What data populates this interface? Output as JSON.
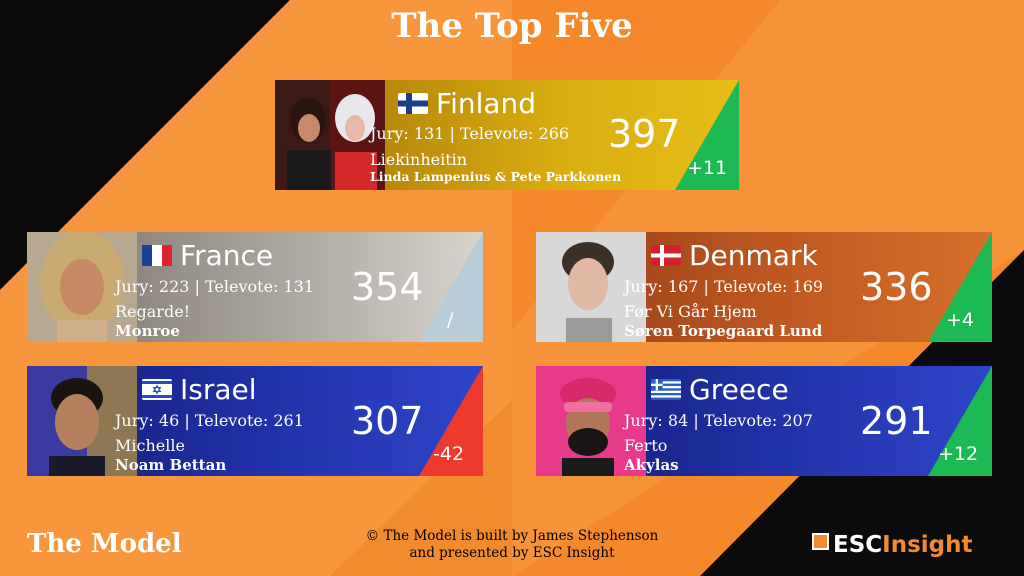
{
  "title": "The Top Five",
  "footer": {
    "left": "The Model",
    "credit_line1": "© The Model is built by James Stephenson",
    "credit_line2": "and presented by ESC Insight",
    "logo_prefix": "ESC",
    "logo_suffix": "Insight"
  },
  "entries": [
    {
      "country": "Finland",
      "jury": "Jury: 131",
      "televote": "Televote: 266",
      "score": "397",
      "song": "Liekinheitin",
      "artist": "Linda Lampenius & Pete Parkkonen",
      "change": "+11",
      "panel_color": "#d4a90a",
      "change_color": "#1db954"
    },
    {
      "country": "France",
      "jury": "Jury: 223",
      "televote": "Televote: 131",
      "score": "354",
      "song": "Regarde!",
      "artist": "Monroe",
      "change": "/",
      "panel_color": "#a8a39c",
      "change_color": "#b8cdd8"
    },
    {
      "country": "Denmark",
      "jury": "Jury: 167",
      "televote": "Televote: 169",
      "score": "336",
      "song": "Før Vi Går Hjem",
      "artist": "Søren Torpegaard Lund",
      "change": "+4",
      "panel_color": "#c25a1f",
      "change_color": "#1db954"
    },
    {
      "country": "Israel",
      "jury": "Jury: 46",
      "televote": "Televote: 261",
      "score": "307",
      "song": "Michelle",
      "artist": "Noam Bettan",
      "change": "-42",
      "panel_color": "#2233a8",
      "change_color": "#ee3a2e"
    },
    {
      "country": "Greece",
      "jury": "Jury: 84",
      "televote": "Televote: 207",
      "score": "291",
      "song": "Ferto",
      "artist": "Akylas",
      "change": "+12",
      "panel_color": "#2233a8",
      "change_color": "#1db954"
    }
  ]
}
